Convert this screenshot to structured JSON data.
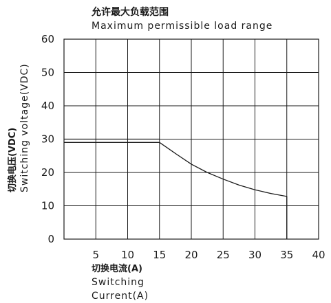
{
  "chart_data": {
    "type": "line",
    "title_cn": "允许最大负载范围",
    "title_en": "Maximum permissible load range",
    "xlabel_cn": "切换电流(A)",
    "xlabel_en_1": "Switching",
    "xlabel_en_2": "Current(A)",
    "ylabel_cn": "切换电压(VDC)",
    "ylabel_en": "Switching voltage(VDC)",
    "xlim": [
      0,
      40
    ],
    "ylim": [
      0,
      60
    ],
    "x_ticks": [
      5,
      10,
      15,
      20,
      25,
      30,
      35,
      40
    ],
    "y_ticks": [
      0,
      10,
      20,
      30,
      40,
      50,
      60
    ],
    "grid": true,
    "series": [
      {
        "x": [
          0,
          15,
          17.5,
          20,
          22.5,
          25,
          27.5,
          30,
          32.5,
          35,
          35
        ],
        "y": [
          29,
          29,
          25.7,
          22.5,
          20,
          18,
          16.2,
          14.8,
          13.7,
          12.8,
          0
        ]
      }
    ],
    "reference_line": {
      "y": 30,
      "x_start": 0,
      "x_end": 15
    }
  }
}
